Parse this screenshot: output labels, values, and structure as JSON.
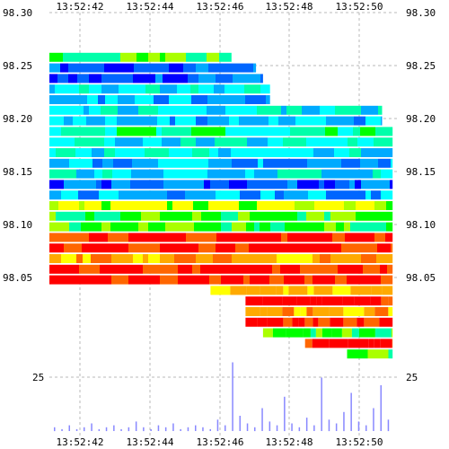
{
  "chart_data": {
    "type": "heatmap",
    "title": "",
    "xlabel": "",
    "ylabel": "",
    "x_ticks": [
      "13:52:42",
      "13:52:44",
      "13:52:46",
      "13:52:48",
      "13:52:50"
    ],
    "x_range": [
      "13:52:41.2",
      "13:52:51.5"
    ],
    "price_ticks": [
      "98.30",
      "98.25",
      "98.20",
      "98.15",
      "98.10",
      "98.05"
    ],
    "price_range": [
      98.0,
      98.3
    ],
    "volume_ticks": [
      "25"
    ],
    "volume_range": [
      0,
      40
    ],
    "grid": true,
    "palette": [
      "#ff0000",
      "#ff6600",
      "#ffaa00",
      "#ffff00",
      "#aaff00",
      "#00ff00",
      "#00ffaa",
      "#00ffff",
      "#00aaff",
      "#0066ff",
      "#0000ff"
    ],
    "bands": [
      {
        "price": 98.262,
        "x0": 0.0,
        "x1": 5.2,
        "color": "#00ff00"
      },
      {
        "price": 98.252,
        "x0": 0.0,
        "x1": 5.9,
        "color": "#0066ff"
      },
      {
        "price": 98.242,
        "x0": 0.0,
        "x1": 6.1,
        "color": "#0066ff"
      },
      {
        "price": 98.232,
        "x0": 0.0,
        "x1": 6.3,
        "color": "#00ffff"
      },
      {
        "price": 98.222,
        "x0": 0.0,
        "x1": 6.3,
        "color": "#00aaff"
      },
      {
        "price": 98.212,
        "x0": 0.0,
        "x1": 9.5,
        "color": "#00ffff"
      },
      {
        "price": 98.202,
        "x0": 0.0,
        "x1": 9.5,
        "color": "#00aaff"
      },
      {
        "price": 98.192,
        "x0": 0.0,
        "x1": 9.8,
        "color": "#00ffaa"
      },
      {
        "price": 98.182,
        "x0": 0.0,
        "x1": 9.8,
        "color": "#00ffff"
      },
      {
        "price": 98.172,
        "x0": 0.0,
        "x1": 9.8,
        "color": "#00ffff"
      },
      {
        "price": 98.162,
        "x0": 0.0,
        "x1": 9.8,
        "color": "#00aaff"
      },
      {
        "price": 98.152,
        "x0": 0.0,
        "x1": 9.8,
        "color": "#00ffff"
      },
      {
        "price": 98.142,
        "x0": 0.0,
        "x1": 9.8,
        "color": "#0066ff"
      },
      {
        "price": 98.132,
        "x0": 0.0,
        "x1": 9.8,
        "color": "#00aaff"
      },
      {
        "price": 98.122,
        "x0": 0.0,
        "x1": 9.8,
        "color": "#aaff00"
      },
      {
        "price": 98.112,
        "x0": 0.0,
        "x1": 9.8,
        "color": "#00ff00"
      },
      {
        "price": 98.102,
        "x0": 0.0,
        "x1": 9.8,
        "color": "#00ff00"
      },
      {
        "price": 98.092,
        "x0": 0.0,
        "x1": 9.8,
        "color": "#ff0000"
      },
      {
        "price": 98.082,
        "x0": 0.0,
        "x1": 9.8,
        "color": "#ff0000"
      },
      {
        "price": 98.072,
        "x0": 0.0,
        "x1": 9.8,
        "color": "#ffaa00"
      },
      {
        "price": 98.062,
        "x0": 0.0,
        "x1": 9.8,
        "color": "#ff0000"
      },
      {
        "price": 98.052,
        "x0": 0.0,
        "x1": 9.8,
        "color": "#ff0000"
      },
      {
        "price": 98.042,
        "x0": 4.6,
        "x1": 9.8,
        "color": "#ffaa00"
      },
      {
        "price": 98.032,
        "x0": 5.6,
        "x1": 9.8,
        "color": "#ff0000"
      },
      {
        "price": 98.022,
        "x0": 5.6,
        "x1": 9.8,
        "color": "#ffaa00"
      },
      {
        "price": 98.012,
        "x0": 5.6,
        "x1": 9.8,
        "color": "#ff0000"
      },
      {
        "price": 98.002,
        "x0": 6.1,
        "x1": 9.8,
        "color": "#00ff00"
      },
      {
        "price": 97.992,
        "x0": 7.3,
        "x1": 9.8,
        "color": "#ff0000"
      },
      {
        "price": 97.982,
        "x0": 8.5,
        "x1": 9.8,
        "color": "#00ff00"
      }
    ],
    "volume": [
      2,
      1,
      3,
      1,
      2,
      4,
      1,
      2,
      3,
      1,
      2,
      5,
      2,
      1,
      3,
      2,
      4,
      1,
      2,
      3,
      2,
      1,
      6,
      3,
      36,
      8,
      4,
      2,
      12,
      5,
      3,
      18,
      4,
      2,
      7,
      3,
      28,
      6,
      4,
      10,
      20,
      5,
      3,
      12,
      24,
      6
    ]
  }
}
